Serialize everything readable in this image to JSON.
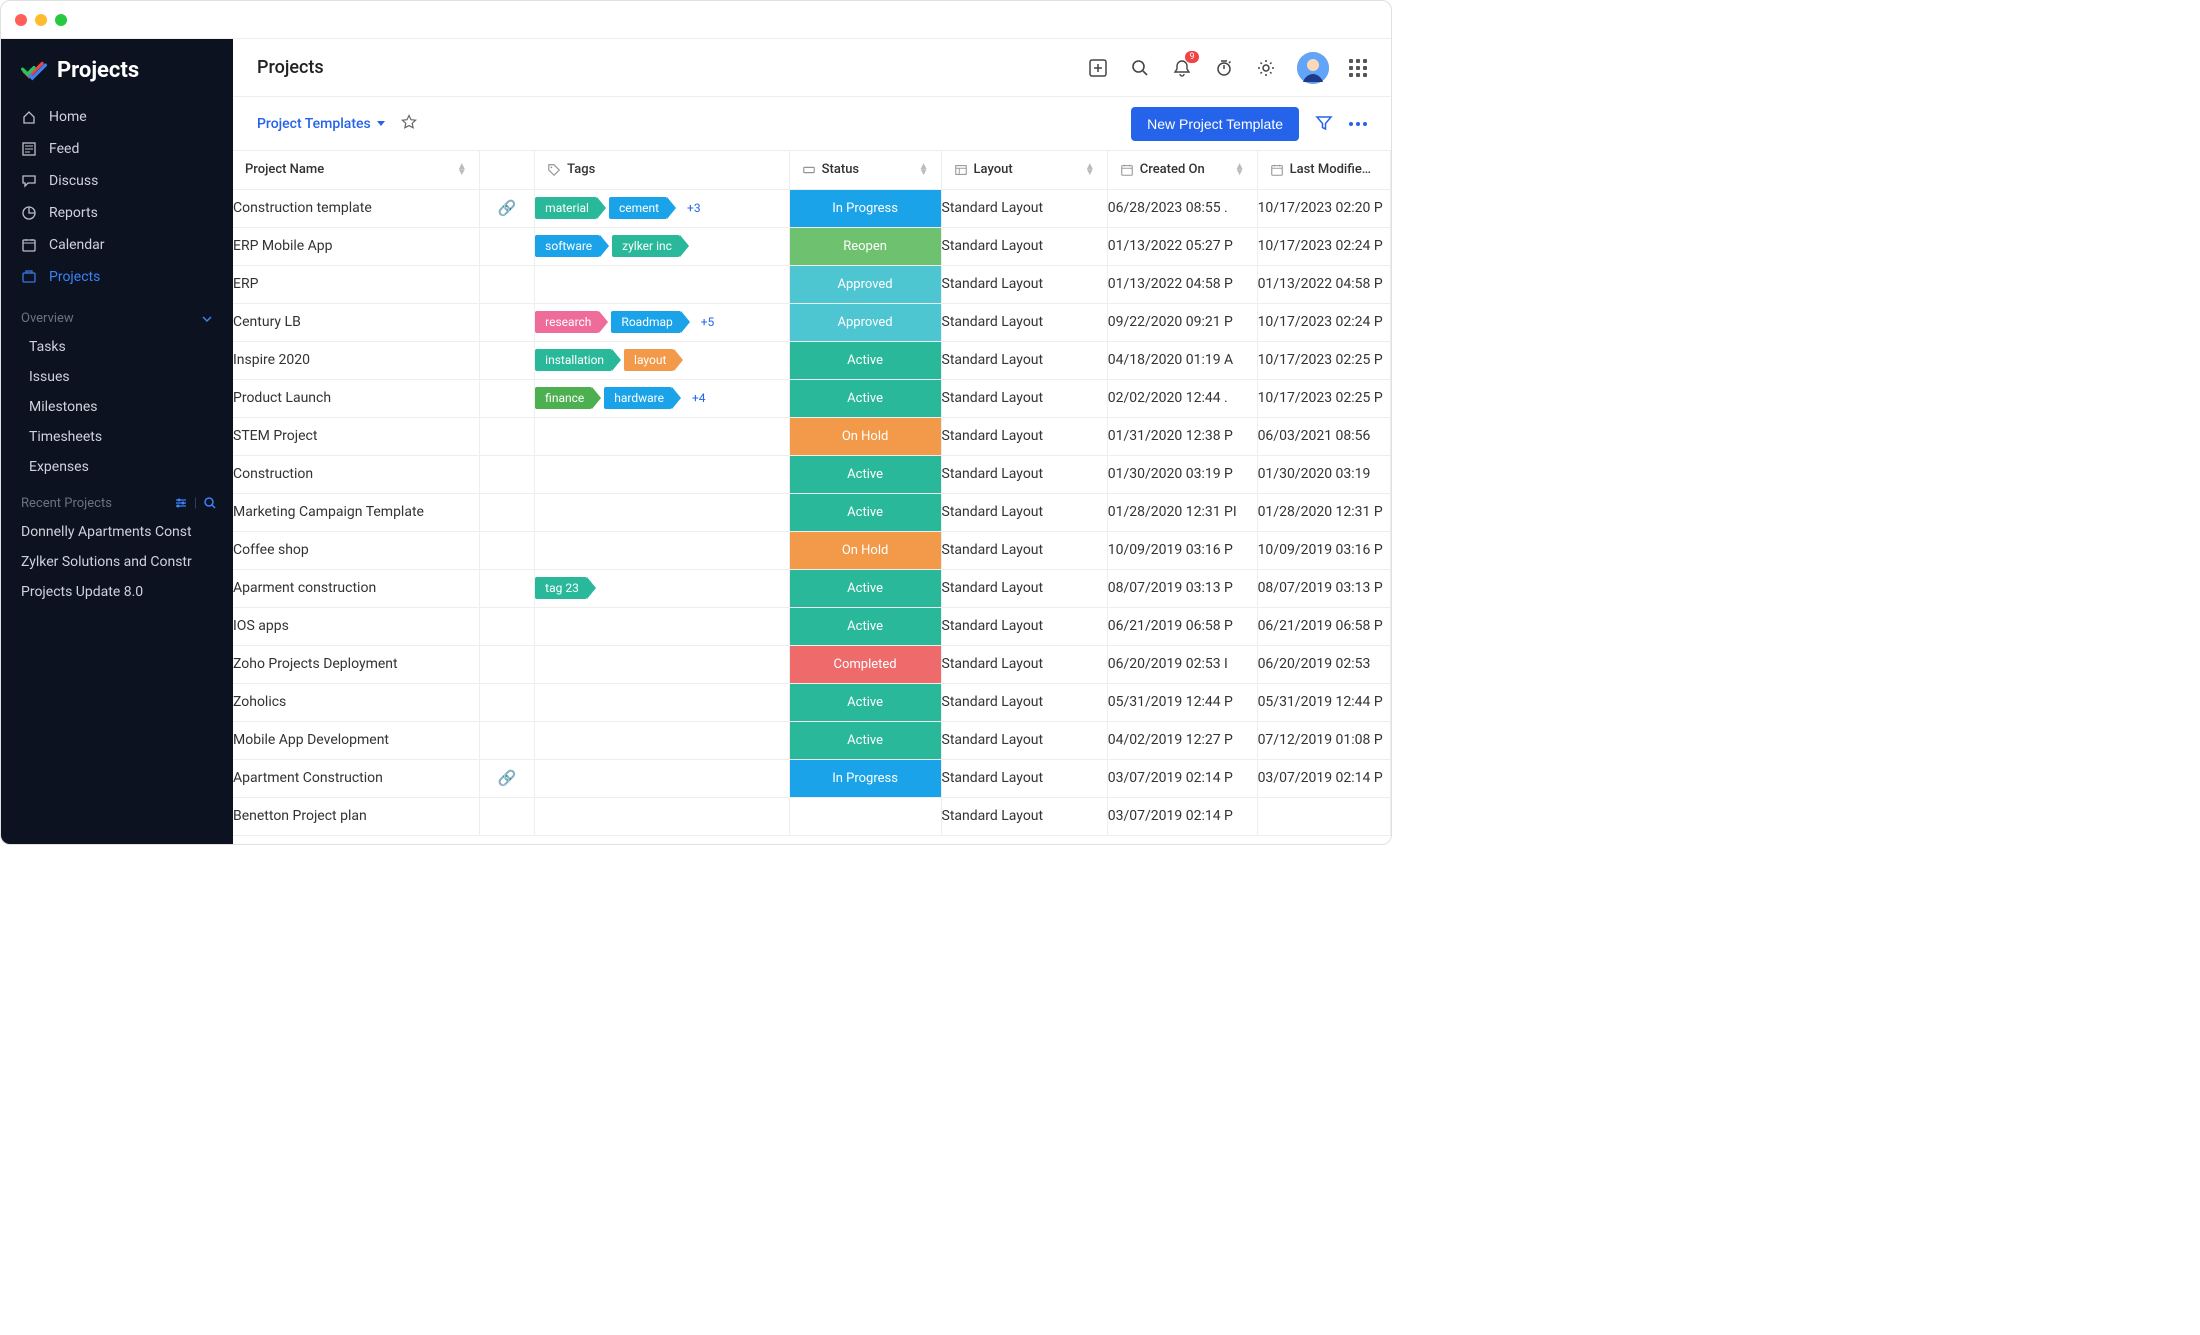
{
  "brand": {
    "title": "Projects"
  },
  "nav": [
    {
      "key": "home",
      "label": "Home",
      "active": false
    },
    {
      "key": "feed",
      "label": "Feed",
      "active": false
    },
    {
      "key": "discuss",
      "label": "Discuss",
      "active": false
    },
    {
      "key": "reports",
      "label": "Reports",
      "active": false
    },
    {
      "key": "calendar",
      "label": "Calendar",
      "active": false
    },
    {
      "key": "projects",
      "label": "Projects",
      "active": true
    }
  ],
  "overview": {
    "title": "Overview",
    "items": [
      "Tasks",
      "Issues",
      "Milestones",
      "Timesheets",
      "Expenses"
    ]
  },
  "recent": {
    "title": "Recent Projects",
    "items": [
      "Donnelly Apartments Const",
      "Zylker Solutions and Constr",
      "Projects Update 8.0"
    ]
  },
  "header": {
    "page_title": "Projects",
    "notification_count": "9"
  },
  "subheader": {
    "dropdown_label": "Project Templates",
    "new_button": "New Project Template"
  },
  "columns": {
    "name": "Project Name",
    "tags": "Tags",
    "status": "Status",
    "layout": "Layout",
    "created": "Created On",
    "modified": "Last Modifie…"
  },
  "status_colors": {
    "In Progress": "#1aa3e8",
    "Reopen": "#6ec16f",
    "Approved": "#4dc6d1",
    "Active": "#29b99a",
    "On Hold": "#f2994a",
    "Completed": "#ef6b6b"
  },
  "tag_colors": {
    "teal": "#29b99a",
    "blue": "#1aa3e8",
    "pink": "#ef6b9a",
    "orange": "#f2994a",
    "green": "#4caf50"
  },
  "rows": [
    {
      "name": "Construction template",
      "link": true,
      "tags": [
        {
          "t": "material",
          "c": "teal"
        },
        {
          "t": "cement",
          "c": "blue"
        }
      ],
      "more": "+3",
      "status": "In Progress",
      "layout": "Standard Layout",
      "created": "06/28/2023 08:55 .",
      "modified": "10/17/2023 02:20 P"
    },
    {
      "name": "ERP Mobile App",
      "link": false,
      "tags": [
        {
          "t": "software",
          "c": "blue"
        },
        {
          "t": "zylker inc",
          "c": "teal"
        }
      ],
      "more": "",
      "status": "Reopen",
      "layout": "Standard Layout",
      "created": "01/13/2022 05:27 P",
      "modified": "10/17/2023 02:24 P"
    },
    {
      "name": "ERP",
      "link": false,
      "tags": [],
      "more": "",
      "status": "Approved",
      "layout": "Standard Layout",
      "created": "01/13/2022 04:58 P",
      "modified": "01/13/2022 04:58 P"
    },
    {
      "name": "Century LB",
      "link": false,
      "tags": [
        {
          "t": "research",
          "c": "pink"
        },
        {
          "t": "Roadmap",
          "c": "blue"
        }
      ],
      "more": "+5",
      "status": "Approved",
      "layout": "Standard Layout",
      "created": "09/22/2020 09:21 P",
      "modified": "10/17/2023 02:24 P"
    },
    {
      "name": "Inspire 2020",
      "link": false,
      "tags": [
        {
          "t": "installation",
          "c": "teal"
        },
        {
          "t": "layout",
          "c": "orange"
        }
      ],
      "more": "",
      "status": "Active",
      "layout": "Standard Layout",
      "created": "04/18/2020 01:19 A",
      "modified": "10/17/2023 02:25 P"
    },
    {
      "name": "Product Launch",
      "link": false,
      "tags": [
        {
          "t": "finance",
          "c": "green"
        },
        {
          "t": "hardware",
          "c": "blue"
        }
      ],
      "more": "+4",
      "status": "Active",
      "layout": "Standard Layout",
      "created": "02/02/2020 12:44 .",
      "modified": "10/17/2023 02:25 P"
    },
    {
      "name": "STEM Project",
      "link": false,
      "tags": [],
      "more": "",
      "status": "On Hold",
      "layout": "Standard Layout",
      "created": "01/31/2020 12:38 P",
      "modified": "06/03/2021 08:56"
    },
    {
      "name": "Construction",
      "link": false,
      "tags": [],
      "more": "",
      "status": "Active",
      "layout": "Standard Layout",
      "created": "01/30/2020 03:19 P",
      "modified": "01/30/2020 03:19"
    },
    {
      "name": "Marketing Campaign Template",
      "link": false,
      "tags": [],
      "more": "",
      "status": "Active",
      "layout": "Standard Layout",
      "created": "01/28/2020 12:31 PI",
      "modified": "01/28/2020 12:31 P"
    },
    {
      "name": "Coffee shop",
      "link": false,
      "tags": [],
      "more": "",
      "status": "On Hold",
      "layout": "Standard Layout",
      "created": "10/09/2019 03:16 P",
      "modified": "10/09/2019 03:16 P"
    },
    {
      "name": "Aparment construction",
      "link": false,
      "tags": [
        {
          "t": "tag 23",
          "c": "teal"
        }
      ],
      "more": "",
      "status": "Active",
      "layout": "Standard Layout",
      "created": "08/07/2019 03:13 P",
      "modified": "08/07/2019 03:13 P"
    },
    {
      "name": "IOS apps",
      "link": false,
      "tags": [],
      "more": "",
      "status": "Active",
      "layout": "Standard Layout",
      "created": "06/21/2019 06:58 P",
      "modified": "06/21/2019 06:58 P"
    },
    {
      "name": "Zoho Projects Deployment",
      "link": false,
      "tags": [],
      "more": "",
      "status": "Completed",
      "layout": "Standard Layout",
      "created": "06/20/2019 02:53 I",
      "modified": "06/20/2019 02:53"
    },
    {
      "name": "Zoholics",
      "link": false,
      "tags": [],
      "more": "",
      "status": "Active",
      "layout": "Standard Layout",
      "created": "05/31/2019 12:44 P",
      "modified": "05/31/2019 12:44 P"
    },
    {
      "name": "Mobile App Development",
      "link": false,
      "tags": [],
      "more": "",
      "status": "Active",
      "layout": "Standard Layout",
      "created": "04/02/2019 12:27 P",
      "modified": "07/12/2019 01:08 P"
    },
    {
      "name": "Apartment Construction",
      "link": true,
      "tags": [],
      "more": "",
      "status": "In Progress",
      "layout": "Standard Layout",
      "created": "03/07/2019 02:14 P",
      "modified": "03/07/2019 02:14 P"
    },
    {
      "name": "Benetton Project plan",
      "link": false,
      "tags": [],
      "more": "",
      "status": "",
      "layout": "Standard Layout",
      "created": "03/07/2019 02:14 P",
      "modified": ""
    }
  ]
}
